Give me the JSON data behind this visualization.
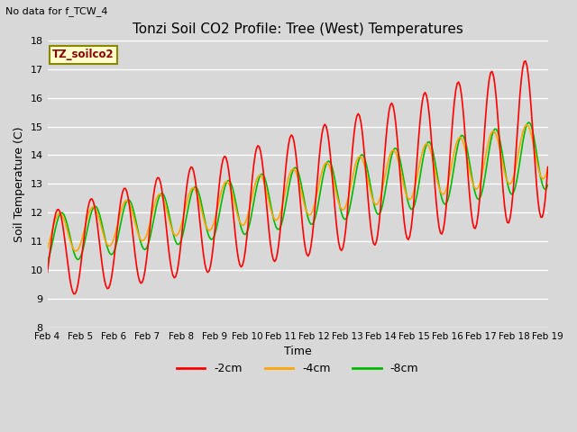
{
  "title": "Tonzi Soil CO2 Profile: Tree (West) Temperatures",
  "subtitle": "No data for f_TCW_4",
  "ylabel": "Soil Temperature (C)",
  "xlabel": "Time",
  "ylim": [
    8.0,
    18.0
  ],
  "yticks": [
    8.0,
    9.0,
    10.0,
    11.0,
    12.0,
    13.0,
    14.0,
    15.0,
    16.0,
    17.0,
    18.0
  ],
  "xtick_labels": [
    "Feb 4",
    "Feb 5",
    "Feb 6",
    "Feb 7",
    "Feb 8",
    "Feb 9",
    "Feb 10",
    "Feb 11",
    "Feb 12",
    "Feb 13",
    "Feb 14",
    "Feb 15",
    "Feb 16",
    "Feb 17",
    "Feb 18",
    "Feb 19"
  ],
  "colors": {
    "2cm": "#ff0000",
    "4cm": "#ffa500",
    "8cm": "#00bb00"
  },
  "legend_labels": [
    "-2cm",
    "-4cm",
    "-8cm"
  ],
  "watermark_label": "TZ_soilco2",
  "fig_facecolor": "#d8d8d8",
  "plot_facecolor": "#d8d8d8",
  "line_width": 1.2
}
